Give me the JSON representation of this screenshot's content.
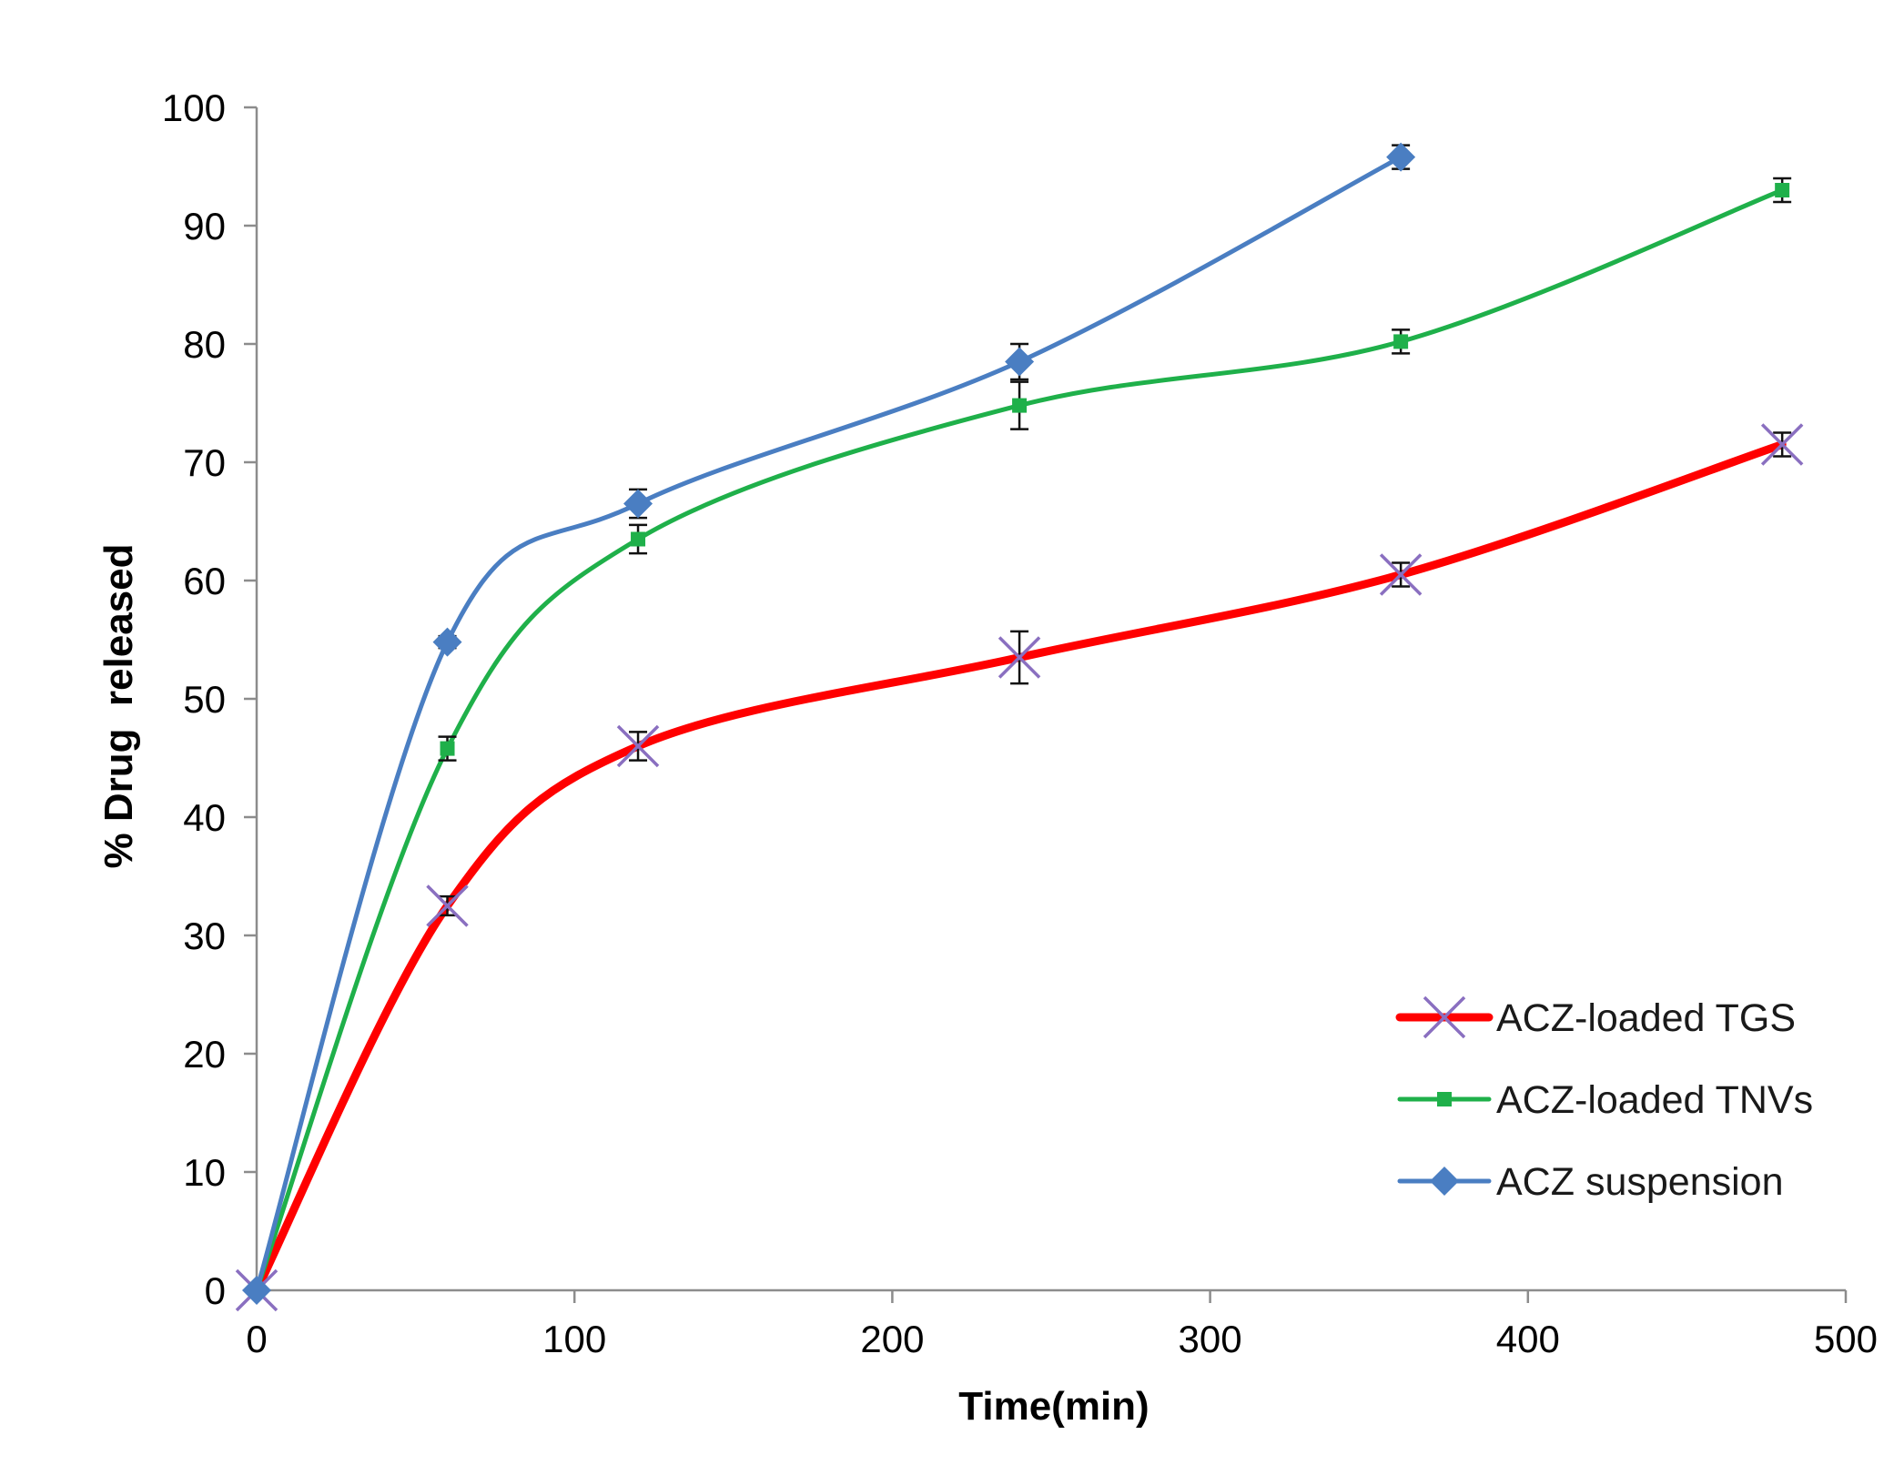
{
  "chart_data": {
    "type": "line",
    "title": "",
    "xlabel": "Time(min)",
    "ylabel": "% Drug  released",
    "xlim": [
      0,
      500
    ],
    "ylim": [
      0,
      100
    ],
    "x_ticks": [
      0,
      100,
      200,
      300,
      400,
      500
    ],
    "y_ticks": [
      0,
      10,
      20,
      30,
      40,
      50,
      60,
      70,
      80,
      90,
      100
    ],
    "x_tick_labels": [
      "0",
      "100",
      "200",
      "300",
      "400",
      "500"
    ],
    "y_tick_labels": [
      "0",
      "10",
      "20",
      "30",
      "40",
      "50",
      "60",
      "70",
      "80",
      "90",
      "100"
    ],
    "grid": false,
    "legend_position": "bottom-right",
    "series": [
      {
        "name": "ACZ-loaded TGS",
        "color": "#ff0000",
        "marker": "x",
        "x": [
          0,
          60,
          120,
          240,
          360,
          480
        ],
        "values": [
          0,
          32.5,
          46,
          53.5,
          60.5,
          71.5
        ],
        "errors": [
          0,
          0.8,
          1.2,
          2.2,
          1.0,
          1.0
        ]
      },
      {
        "name": "ACZ-loaded TNVs",
        "color": "#1fb04a",
        "marker": "square",
        "x": [
          0,
          60,
          120,
          240,
          360,
          480
        ],
        "values": [
          0,
          45.8,
          63.5,
          74.8,
          80.2,
          93
        ],
        "errors": [
          0,
          1.0,
          1.2,
          2.0,
          1.0,
          1.0
        ]
      },
      {
        "name": "ACZ suspension",
        "color": "#4a7ec2",
        "marker": "diamond",
        "x": [
          0,
          60,
          120,
          240,
          360
        ],
        "values": [
          0,
          54.8,
          66.5,
          78.5,
          95.8
        ],
        "errors": [
          0,
          0.5,
          1.2,
          1.5,
          1.0
        ]
      }
    ]
  }
}
